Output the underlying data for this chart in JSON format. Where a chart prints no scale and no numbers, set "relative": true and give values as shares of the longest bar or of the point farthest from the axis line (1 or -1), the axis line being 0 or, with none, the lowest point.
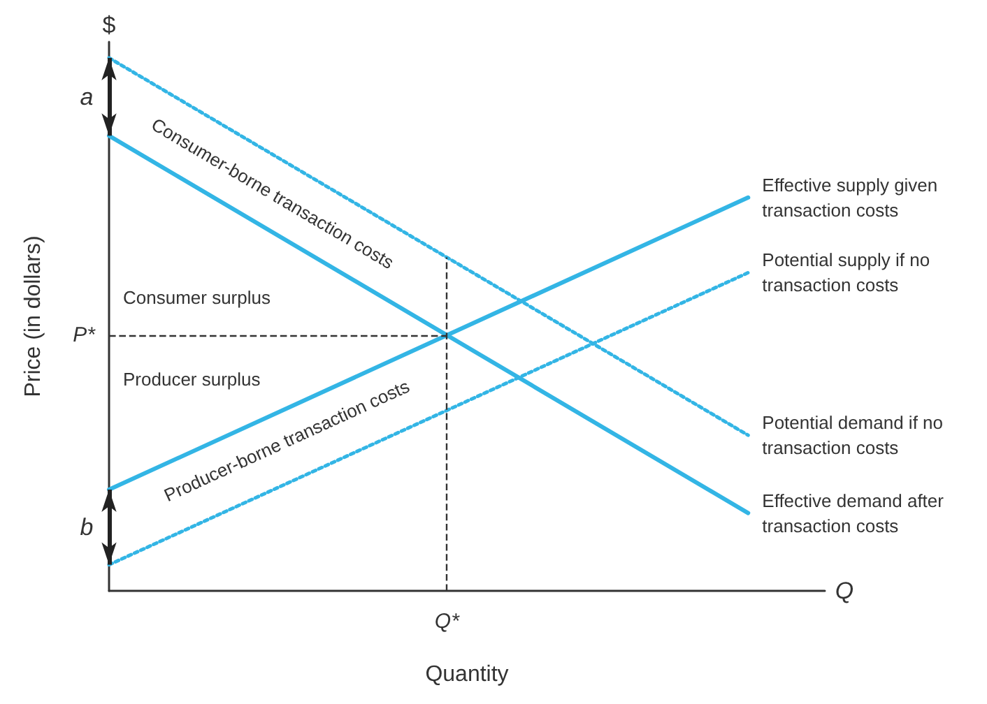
{
  "chart_data": {
    "type": "line",
    "relative": true,
    "xlabel": "Quantity",
    "ylabel": "Price (in dollars)",
    "categories": [
      null,
      null
    ],
    "series": [
      {
        "name": "Effective demand after transaction costs",
        "color": "#33b5e5",
        "line_style": "solid",
        "values": [
          0.854,
          0.146
        ]
      },
      {
        "name": "Potential demand if no transaction costs",
        "color": "#33b5e5",
        "line_style": "dotted",
        "values": [
          1,
          0.292
        ]
      },
      {
        "name": "Effective supply given transaction costs",
        "color": "#33b5e5",
        "line_style": "solid",
        "values": [
          0.19,
          0.738
        ]
      },
      {
        "name": "Potential supply if no transaction costs",
        "color": "#33b5e5",
        "line_style": "dotted",
        "values": [
          0.049,
          0.597
        ]
      }
    ],
    "ref_lines": [
      {
        "axis": "y",
        "value": 0.479,
        "label": "P*",
        "color": "#333333",
        "line_style": "dashed"
      }
    ],
    "annotations": [
      "$",
      "Q",
      "Q*",
      "a",
      "b",
      "Consumer surplus",
      "Producer surplus",
      "Consumer-borne transaction costs",
      "Producer-borne transaction costs"
    ],
    "legend": false,
    "grid": false,
    "marker": "none"
  }
}
